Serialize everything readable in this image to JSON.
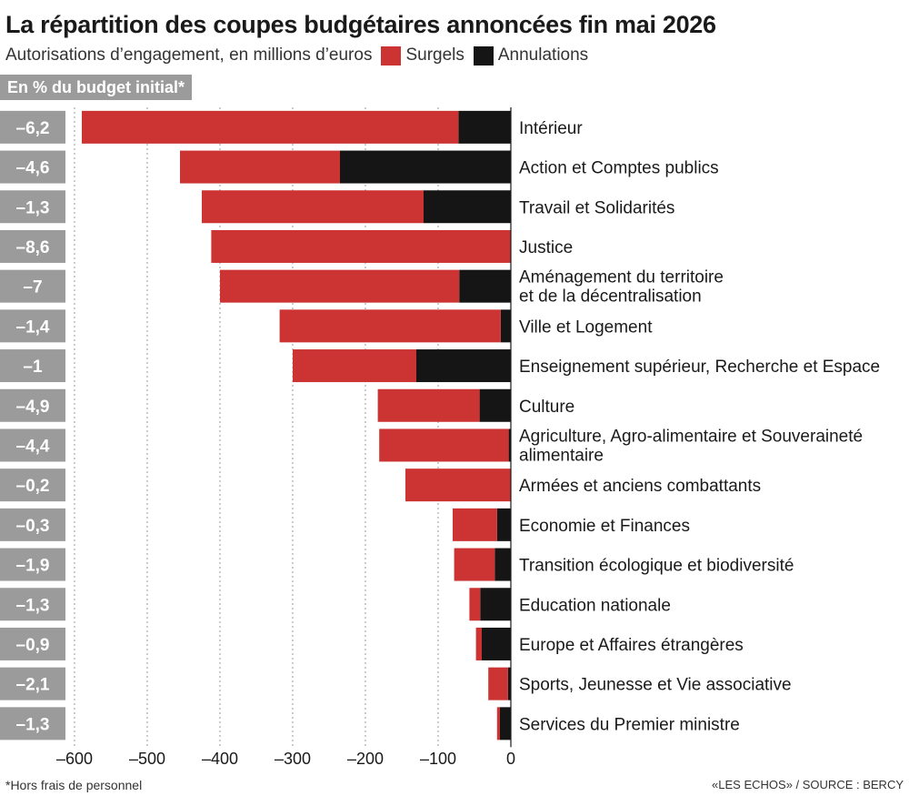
{
  "title": "La répartition des coupes budgétaires annoncées fin mai 2026",
  "subtitle": "Autorisations d’engagement, en millions d’euros",
  "pct_header": "En % du budget initial*",
  "footnote": "*Hors frais de personnel",
  "source": "«LES ECHOS» / SOURCE : BERCY",
  "colors": {
    "surgels": "#cc3333",
    "annulations": "#151515",
    "pct_box": "#9b9b9b",
    "grid": "#999999"
  },
  "chart_data": {
    "type": "bar",
    "orientation": "horizontal",
    "stacked": true,
    "xlim": [
      -640,
      0
    ],
    "x_ticks": [
      "–600",
      "–500",
      "–400",
      "–300",
      "–200",
      "–100",
      "0"
    ],
    "x_tick_values": [
      -600,
      -500,
      -400,
      -300,
      -200,
      -100,
      0
    ],
    "legend": [
      "Surgels",
      "Annulations"
    ],
    "categories": [
      [
        "Intérieur"
      ],
      [
        "Action et Comptes publics"
      ],
      [
        "Travail et Solidarités"
      ],
      [
        "Justice"
      ],
      [
        "Aménagement du territoire",
        "et de la décentralisation"
      ],
      [
        "Ville et Logement"
      ],
      [
        "Enseignement supérieur, Recherche et Espace"
      ],
      [
        "Culture"
      ],
      [
        "Agriculture, Agro-alimentaire et Souveraineté",
        "alimentaire"
      ],
      [
        "Armées et anciens combattants"
      ],
      [
        "Economie et Finances"
      ],
      [
        "Transition écologique et biodiversité"
      ],
      [
        "Education nationale"
      ],
      [
        "Europe et Affaires étrangères"
      ],
      [
        "Sports, Jeunesse et Vie associative"
      ],
      [
        "Services du Premier ministre"
      ]
    ],
    "pct_labels": [
      "–6,2",
      "–4,6",
      "–1,3",
      "–8,6",
      "–7",
      "–1,4",
      "–1",
      "–4,9",
      "–4,4",
      "–0,2",
      "–0,3",
      "–1,9",
      "–1,3",
      "–0,9",
      "–2,1",
      "–1,3"
    ],
    "series": [
      {
        "name": "Surgels",
        "values": [
          -518,
          -220,
          -305,
          -412,
          -329,
          -304,
          -170,
          -140,
          -178,
          -145,
          -61,
          -56,
          -15,
          -8,
          -27,
          -4
        ]
      },
      {
        "name": "Annulations",
        "values": [
          -72,
          -235,
          -120,
          0,
          -71,
          -14,
          -130,
          -43,
          -3,
          0,
          -19,
          -22,
          -42,
          -40,
          -4,
          -15
        ]
      }
    ]
  }
}
